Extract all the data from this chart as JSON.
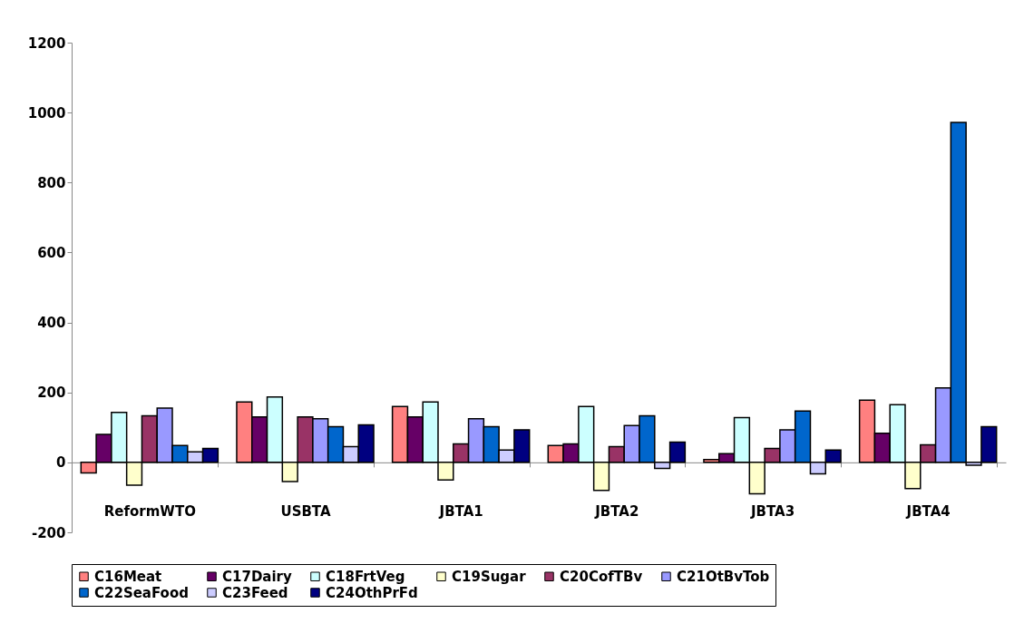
{
  "chart_data": {
    "type": "bar",
    "categories": [
      "ReformWTO",
      "USBTA",
      "JBTA1",
      "JBTA2",
      "JBTA3",
      "JBTA4"
    ],
    "series": [
      {
        "name": "C16Meat",
        "color": "#ff8080",
        "values": [
          -30,
          173,
          160,
          48,
          8,
          178
        ]
      },
      {
        "name": "C17Dairy",
        "color": "#660066",
        "values": [
          80,
          130,
          130,
          53,
          25,
          83
        ]
      },
      {
        "name": "C18FrtVeg",
        "color": "#ccffff",
        "values": [
          143,
          187,
          173,
          160,
          128,
          165
        ]
      },
      {
        "name": "C19Sugar",
        "color": "#ffffcc",
        "values": [
          -65,
          -55,
          -50,
          -80,
          -90,
          -75
        ]
      },
      {
        "name": "C20CofTBv",
        "color": "#993366",
        "values": [
          133,
          130,
          53,
          45,
          40,
          50
        ]
      },
      {
        "name": "C21OtBvTob",
        "color": "#9999ff",
        "values": [
          155,
          125,
          125,
          105,
          93,
          213
        ]
      },
      {
        "name": "C22SeaFood",
        "color": "#0066cc",
        "values": [
          48,
          102,
          102,
          133,
          147,
          972
        ]
      },
      {
        "name": "C23Feed",
        "color": "#ccccff",
        "values": [
          30,
          45,
          35,
          -17,
          -33,
          -8
        ]
      },
      {
        "name": "C24OthPrFd",
        "color": "#000080",
        "values": [
          40,
          107,
          93,
          58,
          35,
          102
        ]
      }
    ],
    "ylim": [
      -200,
      1200
    ],
    "yticks": [
      -200,
      0,
      200,
      400,
      600,
      800,
      1000,
      1200
    ],
    "legend": "bottom"
  }
}
